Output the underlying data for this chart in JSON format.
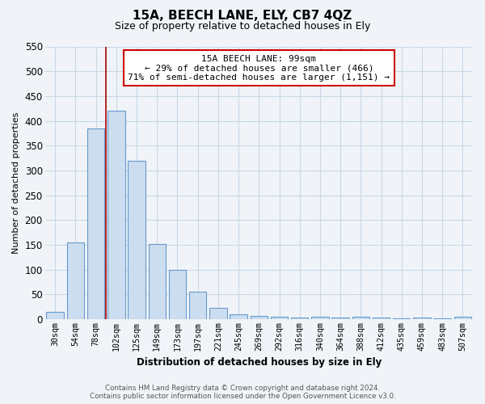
{
  "title": "15A, BEECH LANE, ELY, CB7 4QZ",
  "subtitle": "Size of property relative to detached houses in Ely",
  "xlabel": "Distribution of detached houses by size in Ely",
  "ylabel": "Number of detached properties",
  "bar_labels": [
    "30sqm",
    "54sqm",
    "78sqm",
    "102sqm",
    "125sqm",
    "149sqm",
    "173sqm",
    "197sqm",
    "221sqm",
    "245sqm",
    "269sqm",
    "292sqm",
    "316sqm",
    "340sqm",
    "364sqm",
    "388sqm",
    "412sqm",
    "435sqm",
    "459sqm",
    "483sqm",
    "507sqm"
  ],
  "bar_values": [
    15,
    155,
    385,
    420,
    320,
    152,
    100,
    55,
    22,
    10,
    6,
    4,
    3,
    4,
    3,
    5,
    3,
    2,
    3,
    2,
    5
  ],
  "bar_color": "#ccddf0",
  "bar_edge_color": "#6699cc",
  "ylim": [
    0,
    550
  ],
  "yticks": [
    0,
    50,
    100,
    150,
    200,
    250,
    300,
    350,
    400,
    450,
    500,
    550
  ],
  "vline_x": 2.5,
  "vline_color": "#aa0000",
  "annotation_title": "15A BEECH LANE: 99sqm",
  "annotation_line1": "← 29% of detached houses are smaller (466)",
  "annotation_line2": "71% of semi-detached houses are larger (1,151) →",
  "annotation_box_color": "#ffffff",
  "annotation_box_edge": "#cc0000",
  "footer_line1": "Contains HM Land Registry data © Crown copyright and database right 2024.",
  "footer_line2": "Contains public sector information licensed under the Open Government Licence v3.0.",
  "background_color": "#f0f4f8",
  "plot_bg_color": "#f0f4f8",
  "grid_color": "#c8d8e8"
}
